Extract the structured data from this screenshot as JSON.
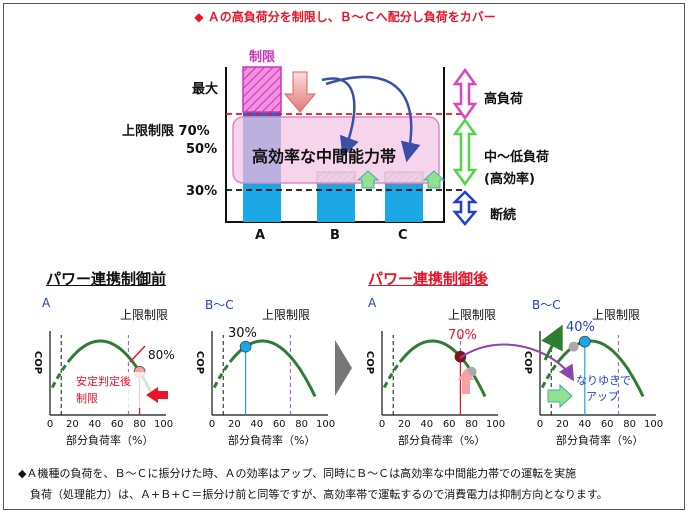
{
  "header": {
    "bullet": "◆",
    "text": "Ａの高負荷分を制限し、Ｂ～Ｃへ配分し負荷をカバー"
  },
  "top_diagram": {
    "seigen_label": "制限",
    "level_labels": {
      "max": "最大",
      "upper_limit": "上限制限 70%",
      "p50": "50%",
      "p30": "30%"
    },
    "band_label": "高効率な中間能力帯",
    "bar_labels": [
      "A",
      "B",
      "C"
    ],
    "legend": {
      "high": "高負荷",
      "mid": "中～低負荷",
      "mid_sub": "(高効率)",
      "intermittent": "断続"
    },
    "colors": {
      "bar": "#1ba7e6",
      "bar_dark": "#1766c2",
      "band": "#f3c6e6",
      "limit_pink": "#e04fc7",
      "high_arrow": "#d946c4",
      "mid_arrow": "#4fd64a",
      "low_arrow": "#1f3fd0",
      "dash_red": "#e8142a"
    }
  },
  "before": {
    "title": "パワー連携制御前",
    "color": "#111111",
    "charts": [
      {
        "name": "A",
        "upper_label": "上限制限",
        "point_label": "80%",
        "annotation_line1": "安定判定後",
        "annotation_line2": "制限"
      },
      {
        "name": "B～C",
        "upper_label": "上限制限",
        "point_label": "30%"
      }
    ]
  },
  "after": {
    "title": "パワー連携制御後",
    "color": "#e8142a",
    "charts": [
      {
        "name": "A",
        "upper_label": "上限制限",
        "point_label": "70%"
      },
      {
        "name": "B～C",
        "upper_label": "上限制限",
        "point_label": "40%",
        "annotation_line1": "なりゆきで",
        "annotation_line2": "アップ"
      }
    ]
  },
  "axes": {
    "ylabel": "COP",
    "xlabel": "部分負荷率（%）",
    "ticks": [
      "0",
      "20",
      "40",
      "60",
      "80",
      "100"
    ]
  },
  "footer": {
    "line1": "◆Ａ機種の負荷を、Ｂ～Ｃに振分けた時、Ａの効率はアップ、同時にＢ～Ｃは高効率な中間能力帯での運転を実施",
    "line2": "負荷（処理能力）は、Ａ+Ｂ+Ｃ＝振分け前と同等ですが、高効率帯で運転するので消費電力は抑制方向となります。"
  },
  "chart_data": [
    {
      "type": "line",
      "panel": "before",
      "title": "A",
      "xlabel": "部分負荷率（%）",
      "ylabel": "COP",
      "xlim": [
        0,
        100
      ],
      "upper_limit_x": 70,
      "minimum_x": 10,
      "point": {
        "x": 80,
        "label": "80%"
      }
    },
    {
      "type": "line",
      "panel": "before",
      "title": "B～C",
      "xlabel": "部分負荷率（%）",
      "ylabel": "COP",
      "xlim": [
        0,
        100
      ],
      "upper_limit_x": 70,
      "minimum_x": 10,
      "point": {
        "x": 30,
        "label": "30%"
      }
    },
    {
      "type": "line",
      "panel": "after",
      "title": "A",
      "xlabel": "部分負荷率（%）",
      "ylabel": "COP",
      "xlim": [
        0,
        100
      ],
      "upper_limit_x": 70,
      "minimum_x": 10,
      "point": {
        "x": 70,
        "label": "70%"
      }
    },
    {
      "type": "line",
      "panel": "after",
      "title": "B～C",
      "xlabel": "部分負荷率（%）",
      "ylabel": "COP",
      "xlim": [
        0,
        100
      ],
      "upper_limit_x": 70,
      "minimum_x": 10,
      "point": {
        "x": 40,
        "label": "40%"
      }
    }
  ]
}
